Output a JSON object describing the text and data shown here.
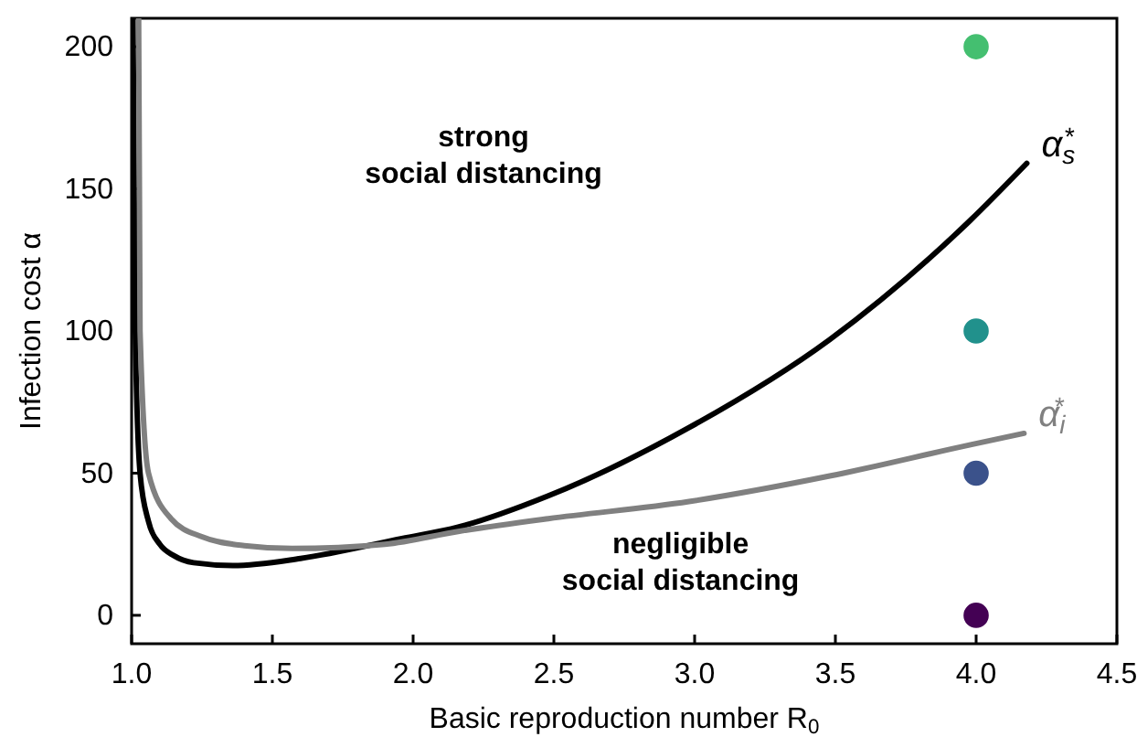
{
  "chart_data": {
    "type": "line",
    "xlabel": "Basic reproduction number R$_{0}$",
    "ylabel": "Infection cost α",
    "xlim": [
      1.0,
      4.5
    ],
    "xticks": [
      {
        "value": 1.0,
        "label": "1.0"
      },
      {
        "value": 1.5,
        "label": "1.5"
      },
      {
        "value": 2.0,
        "label": "2.0"
      },
      {
        "value": 2.5,
        "label": "2.5"
      },
      {
        "value": 3.0,
        "label": "3.0"
      },
      {
        "value": 3.5,
        "label": "3.5"
      },
      {
        "value": 4.0,
        "label": "4.0"
      },
      {
        "value": 4.5,
        "label": "4.5"
      }
    ],
    "ylim": [
      -10,
      210
    ],
    "yticks": [
      0,
      50,
      100,
      150,
      200
    ],
    "grid": false,
    "marker": "none",
    "line_style": "solid",
    "annotations": [
      "strong\nsocial distancing",
      "negligible\nsocial distancing"
    ],
    "series": [
      {
        "name": "α$_{s}$$^{*}$",
        "color": "#000000",
        "x": [
          1.005,
          1.013,
          1.03,
          1.06,
          1.1,
          1.15,
          1.22,
          1.36,
          1.6,
          1.96,
          2.16,
          2.48,
          2.98,
          3.48,
          3.98,
          4.18
        ],
        "values": [
          210,
          100,
          50,
          33,
          25,
          21,
          18.5,
          17.5,
          20,
          27,
          31,
          42,
          66,
          97,
          139,
          159
        ]
      },
      {
        "name": "α$_{i}$$^{*}$",
        "color": "#808080",
        "x": [
          1.025,
          1.03,
          1.06,
          1.14,
          1.25,
          1.4,
          1.57,
          1.9,
          2.16,
          2.48,
          2.98,
          3.48,
          3.98,
          4.17
        ],
        "values": [
          210,
          100,
          50,
          34,
          27.6,
          24.5,
          23.5,
          25,
          29.5,
          34,
          40,
          49,
          60,
          64
        ]
      },
      {
        "type": "scatter",
        "marker": "circle",
        "x": [
          4,
          4,
          4,
          4
        ],
        "values": [
          200,
          100,
          50,
          0
        ],
        "colors": [
          "#44bf70",
          "#21918c",
          "#3b528b",
          "#440154"
        ]
      }
    ]
  }
}
